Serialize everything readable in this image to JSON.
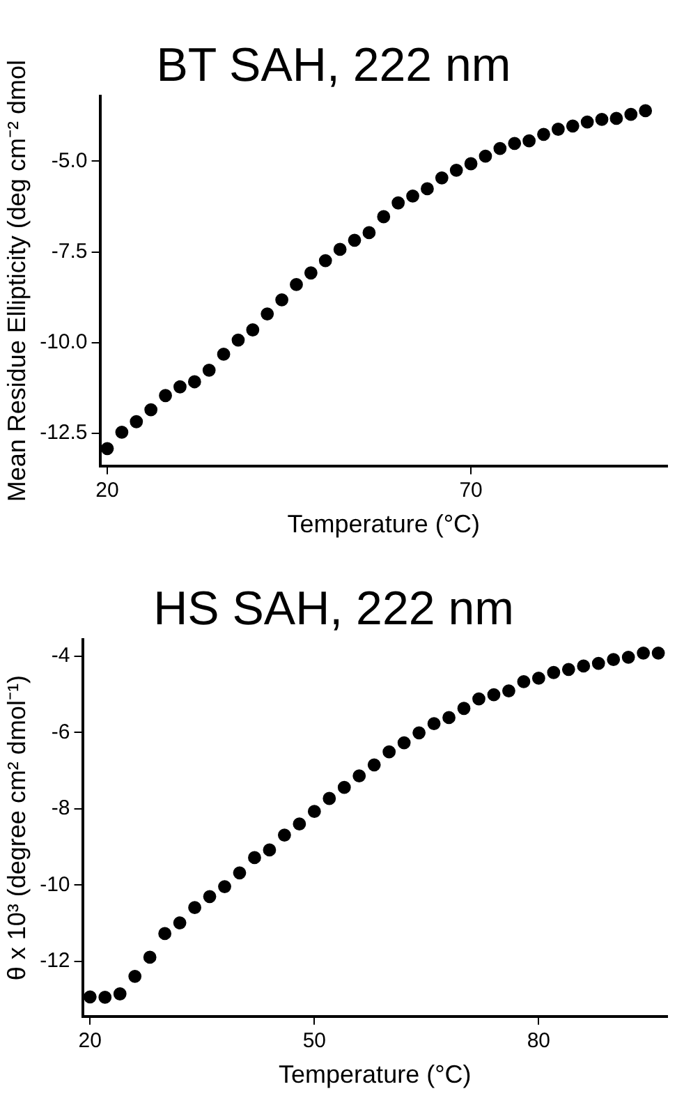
{
  "chart_data": [
    {
      "type": "scatter",
      "title": "BT SAH, 222 nm",
      "xlabel": "Temperature (°C)",
      "ylabel": "Mean Residue Ellipticity (deg cm⁻² dmol",
      "x": [
        20,
        22,
        24,
        26,
        28,
        30,
        32,
        34,
        36,
        38,
        40,
        42,
        44,
        46,
        48,
        50,
        52,
        54,
        56,
        58,
        60,
        62,
        64,
        66,
        68,
        70,
        72,
        74,
        76,
        78,
        80,
        82,
        84,
        86,
        88,
        90,
        92,
        94
      ],
      "series": [
        {
          "color": "#000000",
          "values": [
            -12.92,
            -12.47,
            -12.18,
            -11.85,
            -11.46,
            -11.22,
            -11.08,
            -10.76,
            -10.32,
            -9.93,
            -9.65,
            -9.21,
            -8.82,
            -8.4,
            -8.08,
            -7.74,
            -7.43,
            -7.18,
            -6.97,
            -6.53,
            -6.15,
            -5.96,
            -5.76,
            -5.46,
            -5.25,
            -5.07,
            -4.86,
            -4.65,
            -4.51,
            -4.44,
            -4.26,
            -4.12,
            -4.03,
            -3.92,
            -3.85,
            -3.82,
            -3.71,
            -3.61
          ]
        }
      ],
      "xlim": [
        19,
        97
      ],
      "ylim": [
        -13.4,
        -3.2
      ],
      "xticks": [
        20,
        70
      ],
      "yticks": [
        {
          "value": -5,
          "label": "-5.0"
        },
        -7.5,
        {
          "value": -10,
          "label": "-10.0"
        },
        -12.5
      ],
      "marker": "circle",
      "grid": false
    },
    {
      "type": "scatter",
      "title": "HS SAH, 222 nm",
      "xlabel": "Temperature (°C)",
      "ylabel": "θ x 10³ (degree cm² dmol⁻¹)",
      "x": [
        20,
        22,
        24,
        26,
        28,
        30,
        32,
        34,
        36,
        38,
        40,
        42,
        44,
        46,
        48,
        50,
        52,
        54,
        56,
        58,
        60,
        62,
        64,
        66,
        68,
        70,
        72,
        74,
        76,
        78,
        80,
        82,
        84,
        86,
        88,
        90,
        92,
        94,
        96
      ],
      "series": [
        {
          "color": "#000000",
          "values": [
            -12.93,
            -12.94,
            -12.85,
            -12.39,
            -11.89,
            -11.27,
            -10.99,
            -10.59,
            -10.3,
            -10.04,
            -9.68,
            -9.28,
            -9.08,
            -8.69,
            -8.4,
            -8.07,
            -7.73,
            -7.44,
            -7.14,
            -6.85,
            -6.51,
            -6.27,
            -6.01,
            -5.77,
            -5.61,
            -5.37,
            -5.12,
            -5.01,
            -4.91,
            -4.67,
            -4.58,
            -4.43,
            -4.35,
            -4.26,
            -4.19,
            -4.09,
            -4.03,
            -3.92,
            -3.92
          ]
        }
      ],
      "xlim": [
        19,
        97.2
      ],
      "ylim": [
        -13.44,
        -3.56
      ],
      "xticks": [
        20,
        50,
        80
      ],
      "yticks": [
        -4,
        -6,
        -8,
        -10,
        -12
      ],
      "marker": "circle",
      "grid": false
    }
  ]
}
